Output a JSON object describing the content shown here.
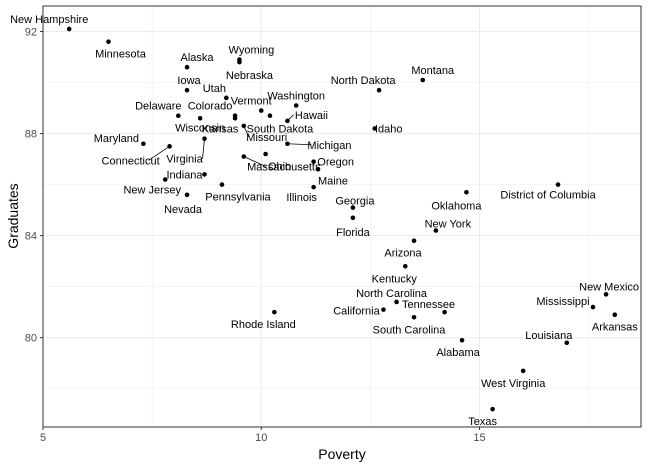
{
  "chart_data": {
    "type": "scatter",
    "title": "",
    "xlabel": "Poverty",
    "ylabel": "Graduates",
    "xlim": [
      5,
      18.7
    ],
    "ylim": [
      76.5,
      93
    ],
    "x_ticks": [
      "5",
      "10",
      "15"
    ],
    "y_ticks": [
      "80",
      "84",
      "88",
      "92"
    ],
    "grid": true,
    "point_color": "#000000",
    "points": [
      {
        "state": "New Hampshire",
        "x": 5.6,
        "y": 92.1
      },
      {
        "state": "Minnesota",
        "x": 6.5,
        "y": 91.6
      },
      {
        "state": "Wyoming",
        "x": 9.5,
        "y": 90.9
      },
      {
        "state": "Nebraska",
        "x": 9.5,
        "y": 90.8
      },
      {
        "state": "Alaska",
        "x": 8.3,
        "y": 90.6
      },
      {
        "state": "Montana",
        "x": 13.7,
        "y": 90.1
      },
      {
        "state": "Iowa",
        "x": 8.3,
        "y": 89.7
      },
      {
        "state": "North Dakota",
        "x": 12.7,
        "y": 89.7
      },
      {
        "state": "Utah",
        "x": 9.2,
        "y": 89.4
      },
      {
        "state": "Washington",
        "x": 10.8,
        "y": 89.1
      },
      {
        "state": "Vermont",
        "x": 10.0,
        "y": 88.9
      },
      {
        "state": "Delaware",
        "x": 8.1,
        "y": 88.7
      },
      {
        "state": "Colorado",
        "x": 9.4,
        "y": 88.7
      },
      {
        "state": "Hawaii",
        "x": 10.6,
        "y": 88.5
      },
      {
        "state": "Wisconsin",
        "x": 8.6,
        "y": 88.6
      },
      {
        "state": "Kansas",
        "x": 9.4,
        "y": 88.6
      },
      {
        "state": "South Dakota",
        "x": 10.2,
        "y": 88.7
      },
      {
        "state": "Idaho",
        "x": 12.6,
        "y": 88.2
      },
      {
        "state": "Maryland",
        "x": 7.3,
        "y": 87.6
      },
      {
        "state": "Missouri",
        "x": 9.6,
        "y": 88.3
      },
      {
        "state": "Virginia",
        "x": 8.7,
        "y": 87.8
      },
      {
        "state": "Connecticut",
        "x": 7.9,
        "y": 87.5
      },
      {
        "state": "Michigan",
        "x": 10.6,
        "y": 87.6
      },
      {
        "state": "Ohio",
        "x": 10.1,
        "y": 87.2
      },
      {
        "state": "Massachusetts",
        "x": 9.6,
        "y": 87.1
      },
      {
        "state": "Oregon",
        "x": 11.2,
        "y": 86.9
      },
      {
        "state": "Maine",
        "x": 11.3,
        "y": 86.6
      },
      {
        "state": "Indiana",
        "x": 8.7,
        "y": 86.4
      },
      {
        "state": "New Jersey",
        "x": 7.8,
        "y": 86.2
      },
      {
        "state": "Pennsylvania",
        "x": 9.1,
        "y": 86.0
      },
      {
        "state": "Illinois",
        "x": 11.2,
        "y": 85.9
      },
      {
        "state": "Nevada",
        "x": 8.3,
        "y": 85.6
      },
      {
        "state": "Oklahoma",
        "x": 14.7,
        "y": 85.7
      },
      {
        "state": "District of Columbia",
        "x": 16.8,
        "y": 86.0
      },
      {
        "state": "Georgia",
        "x": 12.1,
        "y": 85.1
      },
      {
        "state": "Florida",
        "x": 12.1,
        "y": 84.7
      },
      {
        "state": "New York",
        "x": 14.0,
        "y": 84.2
      },
      {
        "state": "Arizona",
        "x": 13.5,
        "y": 83.8
      },
      {
        "state": "Kentucky",
        "x": 13.3,
        "y": 82.8
      },
      {
        "state": "New Mexico",
        "x": 17.9,
        "y": 81.7
      },
      {
        "state": "North Carolina",
        "x": 13.1,
        "y": 81.4
      },
      {
        "state": "Mississippi",
        "x": 17.6,
        "y": 81.2
      },
      {
        "state": "California",
        "x": 12.8,
        "y": 81.1
      },
      {
        "state": "Rhode Island",
        "x": 10.3,
        "y": 81.0
      },
      {
        "state": "Tennessee",
        "x": 14.2,
        "y": 81.0
      },
      {
        "state": "Arkansas",
        "x": 18.1,
        "y": 80.9
      },
      {
        "state": "South Carolina",
        "x": 13.5,
        "y": 80.8
      },
      {
        "state": "Louisiana",
        "x": 17.0,
        "y": 79.8
      },
      {
        "state": "Alabama",
        "x": 14.6,
        "y": 79.9
      },
      {
        "state": "West Virginia",
        "x": 16.0,
        "y": 78.7
      },
      {
        "state": "Texas",
        "x": 15.3,
        "y": 77.2
      }
    ]
  }
}
